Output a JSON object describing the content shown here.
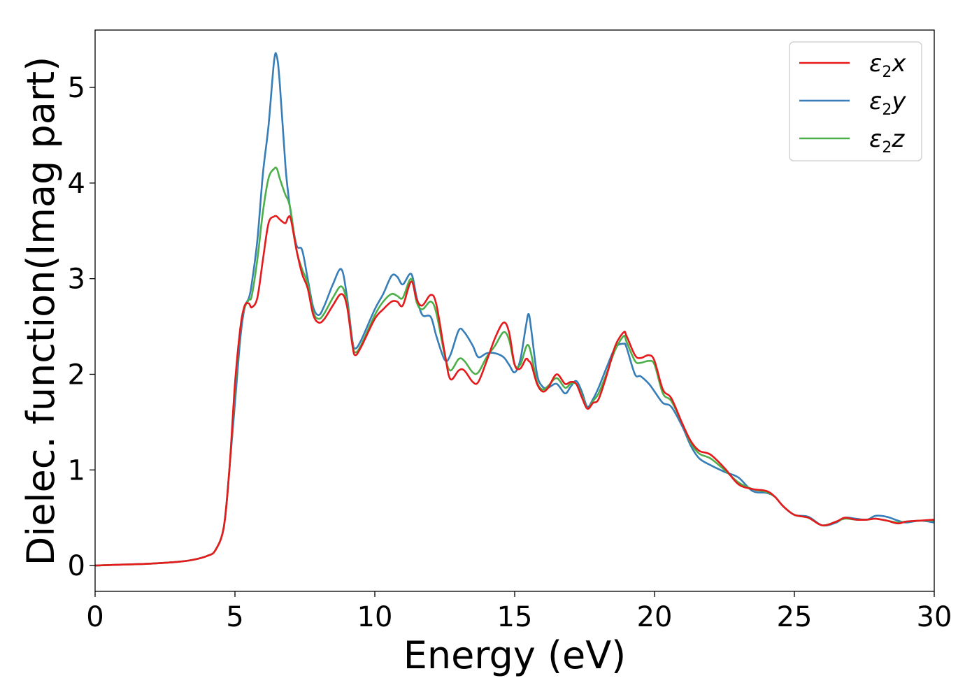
{
  "chart_data": {
    "type": "line",
    "title": "",
    "xlabel": "Energy (eV)",
    "ylabel": "Dielec. function(Imag part)",
    "xlim": [
      0,
      30
    ],
    "ylim": [
      -0.27,
      5.6
    ],
    "xticks": [
      0,
      5,
      10,
      15,
      20,
      25,
      30
    ],
    "yticks": [
      0,
      1,
      2,
      3,
      4,
      5
    ],
    "grid": false,
    "legend_position": "top-right",
    "x": [
      0,
      1,
      2,
      3,
      3.5,
      4,
      4.3,
      4.6,
      4.8,
      5.0,
      5.2,
      5.35,
      5.5,
      5.6,
      5.8,
      6.0,
      6.2,
      6.4,
      6.5,
      6.6,
      6.8,
      6.9,
      7.0,
      7.2,
      7.4,
      7.6,
      7.8,
      8.0,
      8.2,
      8.5,
      8.8,
      9.0,
      9.2,
      9.3,
      9.5,
      10.0,
      10.3,
      10.6,
      10.8,
      11.0,
      11.3,
      11.5,
      11.7,
      12.0,
      12.2,
      12.5,
      12.7,
      13.0,
      13.2,
      13.5,
      13.7,
      14.0,
      14.3,
      14.6,
      14.8,
      15.0,
      15.2,
      15.4,
      15.5,
      15.6,
      15.8,
      16.0,
      16.2,
      16.5,
      16.8,
      17.0,
      17.2,
      17.4,
      17.6,
      17.8,
      18.0,
      18.3,
      18.6,
      18.9,
      19.0,
      19.3,
      19.5,
      19.8,
      20.0,
      20.3,
      20.6,
      21.0,
      21.3,
      21.6,
      22.0,
      22.5,
      23.0,
      23.5,
      24.0,
      24.3,
      24.6,
      25.0,
      25.5,
      26.0,
      26.5,
      26.8,
      27.2,
      27.6,
      27.9,
      28.3,
      28.7,
      29.0,
      29.5,
      30.0
    ],
    "series": [
      {
        "name": "ε₂x",
        "color": "#e41a1c",
        "values": [
          0.0,
          0.01,
          0.02,
          0.04,
          0.06,
          0.1,
          0.16,
          0.4,
          1.0,
          1.9,
          2.5,
          2.72,
          2.74,
          2.7,
          2.8,
          3.2,
          3.58,
          3.65,
          3.65,
          3.62,
          3.58,
          3.64,
          3.62,
          3.3,
          3.05,
          2.9,
          2.62,
          2.54,
          2.58,
          2.72,
          2.84,
          2.72,
          2.3,
          2.2,
          2.28,
          2.58,
          2.68,
          2.76,
          2.76,
          2.72,
          2.97,
          2.78,
          2.72,
          2.83,
          2.73,
          2.22,
          1.95,
          2.04,
          2.04,
          1.92,
          1.92,
          2.14,
          2.38,
          2.54,
          2.44,
          2.1,
          2.06,
          2.16,
          2.14,
          2.1,
          1.9,
          1.82,
          1.86,
          2.0,
          1.9,
          1.92,
          1.9,
          1.76,
          1.64,
          1.7,
          1.74,
          2.0,
          2.3,
          2.44,
          2.4,
          2.2,
          2.17,
          2.2,
          2.14,
          1.84,
          1.75,
          1.48,
          1.3,
          1.2,
          1.16,
          1.02,
          0.85,
          0.8,
          0.78,
          0.72,
          0.62,
          0.53,
          0.5,
          0.42,
          0.46,
          0.5,
          0.48,
          0.48,
          0.49,
          0.47,
          0.44,
          0.46,
          0.47,
          0.48
        ]
      },
      {
        "name": "ε₂y",
        "color": "#377eb8",
        "values": [
          0.0,
          0.01,
          0.02,
          0.04,
          0.06,
          0.1,
          0.16,
          0.4,
          1.0,
          1.7,
          2.4,
          2.7,
          2.8,
          2.95,
          3.4,
          4.1,
          4.6,
          5.28,
          5.32,
          5.05,
          4.2,
          3.9,
          3.68,
          3.35,
          3.3,
          3.0,
          2.7,
          2.62,
          2.72,
          2.94,
          3.1,
          2.82,
          2.35,
          2.27,
          2.35,
          2.68,
          2.84,
          3.03,
          3.02,
          2.94,
          3.05,
          2.8,
          2.62,
          2.6,
          2.4,
          2.15,
          2.2,
          2.46,
          2.44,
          2.3,
          2.18,
          2.22,
          2.22,
          2.18,
          2.1,
          2.02,
          2.15,
          2.5,
          2.63,
          2.45,
          2.0,
          1.87,
          1.86,
          1.9,
          1.8,
          1.87,
          1.93,
          1.82,
          1.66,
          1.74,
          1.86,
          2.08,
          2.28,
          2.32,
          2.28,
          2.0,
          1.98,
          1.9,
          1.82,
          1.7,
          1.66,
          1.45,
          1.25,
          1.12,
          1.05,
          0.98,
          0.92,
          0.78,
          0.76,
          0.72,
          0.62,
          0.53,
          0.51,
          0.42,
          0.45,
          0.5,
          0.49,
          0.48,
          0.52,
          0.51,
          0.47,
          0.45,
          0.47,
          0.45
        ]
      },
      {
        "name": "ε₂z",
        "color": "#4daf4a",
        "values": [
          0.0,
          0.01,
          0.02,
          0.04,
          0.06,
          0.1,
          0.16,
          0.4,
          1.0,
          1.85,
          2.5,
          2.7,
          2.78,
          2.82,
          3.2,
          3.7,
          4.05,
          4.15,
          4.15,
          4.05,
          3.88,
          3.82,
          3.7,
          3.3,
          3.1,
          2.95,
          2.65,
          2.58,
          2.64,
          2.8,
          2.92,
          2.76,
          2.32,
          2.23,
          2.3,
          2.62,
          2.76,
          2.84,
          2.82,
          2.8,
          3.0,
          2.75,
          2.68,
          2.76,
          2.64,
          2.2,
          2.04,
          2.16,
          2.14,
          2.02,
          2.02,
          2.18,
          2.3,
          2.44,
          2.36,
          2.1,
          2.1,
          2.28,
          2.3,
          2.2,
          1.92,
          1.84,
          1.88,
          1.96,
          1.86,
          1.9,
          1.9,
          1.78,
          1.64,
          1.72,
          1.8,
          2.02,
          2.26,
          2.4,
          2.34,
          2.14,
          2.12,
          2.14,
          2.1,
          1.8,
          1.72,
          1.48,
          1.28,
          1.17,
          1.12,
          1.0,
          0.87,
          0.8,
          0.77,
          0.72,
          0.62,
          0.53,
          0.5,
          0.42,
          0.46,
          0.49,
          0.48,
          0.48,
          0.49,
          0.47,
          0.45,
          0.46,
          0.47,
          0.47
        ]
      }
    ]
  },
  "legend": {
    "items": [
      {
        "base": "ε",
        "sub": "2",
        "suffix": "x"
      },
      {
        "base": "ε",
        "sub": "2",
        "suffix": "y"
      },
      {
        "base": "ε",
        "sub": "2",
        "suffix": "z"
      }
    ]
  }
}
